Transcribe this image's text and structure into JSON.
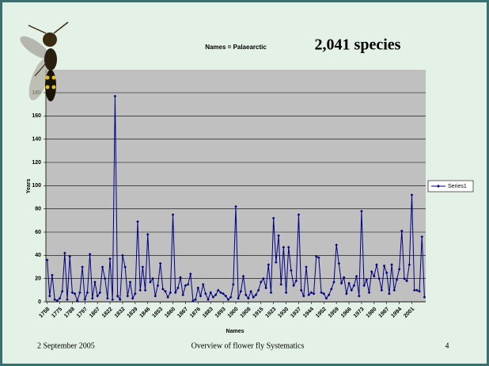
{
  "chart_data": {
    "type": "line",
    "subtitle": "Names = Palaearctic",
    "title": "2,041 species",
    "y_label": "Years",
    "x_label": "Names",
    "categories": [
      "1758",
      null,
      null,
      null,
      null,
      "1775",
      null,
      null,
      null,
      null,
      "1788",
      null,
      null,
      null,
      null,
      "1797",
      null,
      null,
      null,
      null,
      "1807",
      null,
      null,
      null,
      null,
      "1822",
      null,
      null,
      null,
      null,
      "1832",
      null,
      null,
      null,
      null,
      "1839",
      null,
      null,
      null,
      null,
      "1846",
      null,
      null,
      null,
      null,
      "1853",
      null,
      null,
      null,
      null,
      "1860",
      null,
      null,
      null,
      null,
      "1867",
      null,
      null,
      null,
      null,
      "1876",
      null,
      null,
      null,
      null,
      "1883",
      null,
      null,
      null,
      null,
      "1893",
      null,
      null,
      null,
      null,
      "1900",
      null,
      null,
      null,
      null,
      "1908",
      null,
      null,
      null,
      null,
      "1915",
      null,
      null,
      null,
      null,
      "1923",
      null,
      null,
      null,
      null,
      "1930",
      null,
      null,
      null,
      null,
      "1937",
      null,
      null,
      null,
      null,
      "1944",
      null,
      null,
      null,
      null,
      "1952",
      null,
      null,
      null,
      null,
      "1959",
      null,
      null,
      null,
      null,
      "1966",
      null,
      null,
      null,
      null,
      "1973",
      null,
      null,
      null,
      null,
      "1980",
      null,
      null,
      null,
      null,
      "1987",
      null,
      null,
      null,
      null,
      "1994",
      null,
      null,
      null,
      null,
      "2001",
      null,
      null,
      null,
      null,
      null
    ],
    "series": [
      {
        "name": "Series1",
        "color": "#000080",
        "values": [
          36,
          5,
          23,
          2,
          1,
          3,
          9,
          42,
          2,
          39,
          8,
          7,
          1,
          8,
          30,
          2,
          8,
          41,
          3,
          17,
          5,
          8,
          30,
          20,
          3,
          37,
          2,
          177,
          5,
          2,
          40,
          30,
          5,
          17,
          3,
          7,
          69,
          10,
          30,
          10,
          58,
          17,
          20,
          5,
          14,
          33,
          11,
          9,
          4,
          8,
          75,
          8,
          12,
          21,
          6,
          14,
          15,
          24,
          1,
          2,
          12,
          5,
          15,
          7,
          2,
          8,
          4,
          6,
          10,
          8,
          7,
          5,
          2,
          4,
          15,
          82,
          3,
          9,
          22,
          6,
          3,
          9,
          4,
          6,
          10,
          17,
          20,
          12,
          32,
          8,
          72,
          34,
          57,
          15,
          47,
          8,
          47,
          27,
          14,
          18,
          75,
          10,
          5,
          30,
          6,
          8,
          7,
          39,
          38,
          8,
          7,
          3,
          6,
          11,
          17,
          49,
          33,
          16,
          21,
          7,
          16,
          10,
          14,
          22,
          5,
          78,
          14,
          19,
          8,
          26,
          22,
          32,
          20,
          10,
          31,
          25,
          7,
          32,
          10,
          19,
          28,
          61,
          20,
          18,
          32,
          92,
          10,
          10,
          9,
          56,
          4
        ]
      }
    ],
    "ylim": [
      0,
      180
    ],
    "yticks": [
      0,
      20,
      40,
      60,
      80,
      100,
      120,
      140,
      160,
      180
    ],
    "grid": true,
    "plot_color": "#c0c0c0",
    "legend": "right"
  },
  "footer": {
    "date": "2 September 2005",
    "center": "Overview of flower fly Systematics",
    "page": "4"
  }
}
